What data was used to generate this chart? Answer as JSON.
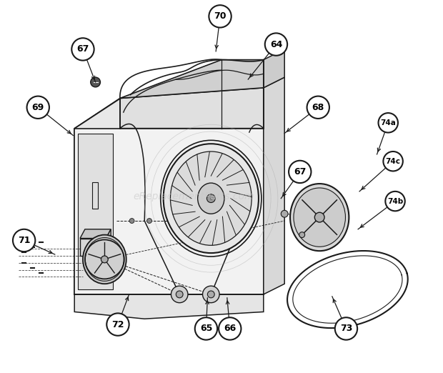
{
  "bg_color": "#ffffff",
  "fig_width": 6.2,
  "fig_height": 5.22,
  "dpi": 100,
  "watermark": "eReplacementParts.com",
  "watermark_color": "#c8c8c8",
  "line_color": "#1a1a1a",
  "callout_data": [
    [
      "67",
      112,
      65,
      130,
      112
    ],
    [
      "70",
      308,
      18,
      302,
      68
    ],
    [
      "64",
      388,
      58,
      348,
      108
    ],
    [
      "69",
      48,
      148,
      98,
      188
    ],
    [
      "68",
      448,
      148,
      400,
      185
    ],
    [
      "67",
      422,
      240,
      395,
      278
    ],
    [
      "74a",
      548,
      170,
      532,
      215
    ],
    [
      "74c",
      555,
      225,
      507,
      268
    ],
    [
      "74b",
      558,
      282,
      505,
      322
    ],
    [
      "71",
      28,
      338,
      72,
      358
    ],
    [
      "72",
      162,
      458,
      178,
      415
    ],
    [
      "65",
      288,
      464,
      290,
      420
    ],
    [
      "66",
      322,
      464,
      318,
      420
    ],
    [
      "73",
      488,
      464,
      468,
      418
    ]
  ]
}
